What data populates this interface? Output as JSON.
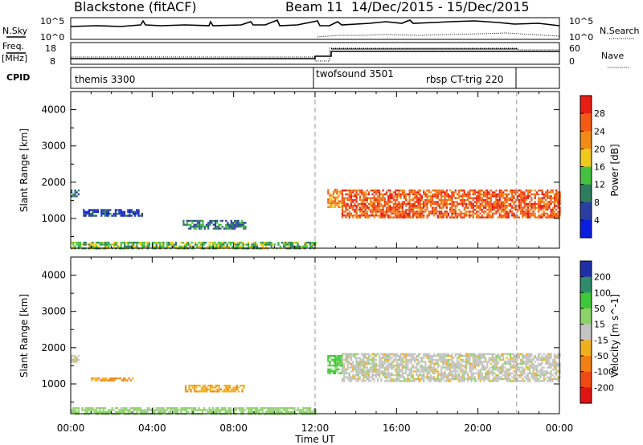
{
  "header": {
    "station": "Blackstone (fitACF)",
    "beam": "Beam 11",
    "dates": "14/Dec/2015 - 15/Dec/2015"
  },
  "aux_panels": {
    "nsky_label": "N.Sky",
    "nsky_ticks": [
      "10^5",
      "10^0"
    ],
    "nsearch_label": "N.Search",
    "nsearch_ticks": [
      "10^5",
      "10^0"
    ],
    "freq_label": "Freq.",
    "freq_unit": "[MHz]",
    "freq_ticks": [
      "18",
      "8"
    ],
    "nave_label": "Nave",
    "nave_ticks": [
      "60",
      "0"
    ],
    "cpid_label": "CPID",
    "cpid_entries": [
      "themis 3300",
      "twofsound 3501",
      "rbsp CT-trig 220"
    ]
  },
  "chart_data": [
    {
      "type": "heatmap",
      "panel": "power",
      "ylabel": "Slant Range [km]",
      "xlabel": "",
      "colorbar_label": "Power [dB]",
      "colorbar_ticks": [
        "4",
        "8",
        "12",
        "16",
        "20",
        "24",
        "28"
      ],
      "colorbar_colors": [
        "#0a1ee0",
        "#2a3ea0",
        "#2e7c5e",
        "#44c040",
        "#f0c81e",
        "#f08c14",
        "#f55a14",
        "#e81e14"
      ],
      "xlim": [
        0,
        24
      ],
      "ylim": [
        180,
        4500
      ],
      "yticks": [
        1000,
        2000,
        3000,
        4000
      ],
      "x_tick_labels": [
        "00:00",
        "04:00",
        "08:00",
        "12:00",
        "16:00",
        "20:00",
        "00:00"
      ],
      "dashed_markers_hours": [
        12.0,
        21.9
      ],
      "regions": [
        {
          "t": [
            0.0,
            0.35
          ],
          "range": [
            1620,
            1800
          ],
          "value_db": 7
        },
        {
          "t": [
            0.6,
            3.5
          ],
          "range": [
            1080,
            1260
          ],
          "value_db": 5
        },
        {
          "t": [
            5.5,
            8.6
          ],
          "range": [
            740,
            960
          ],
          "value_db": 9
        },
        {
          "t": [
            0.0,
            12.0
          ],
          "range": [
            180,
            360
          ],
          "value_db": 14
        },
        {
          "t": [
            12.6,
            13.3
          ],
          "range": [
            1300,
            1820
          ],
          "value_db": 22
        },
        {
          "t": [
            13.3,
            24.0
          ],
          "range": [
            1050,
            1800
          ],
          "value_db": 26
        }
      ]
    },
    {
      "type": "heatmap",
      "panel": "velocity",
      "ylabel": "Slant Range [km]",
      "xlabel": "Time UT",
      "colorbar_label": "Velocity [m s^-1]",
      "colorbar_ticks": [
        "200",
        "100",
        "50",
        "15",
        "-15",
        "-50",
        "-100",
        "-200"
      ],
      "colorbar_colors": [
        "#1f2fa8",
        "#2e8c6a",
        "#3fc83a",
        "#8ed26a",
        "#c4c4c4",
        "#f0b01e",
        "#f08014",
        "#f04a14",
        "#e01414"
      ],
      "xlim": [
        0,
        24
      ],
      "ylim": [
        180,
        4500
      ],
      "yticks": [
        1000,
        2000,
        3000,
        4000
      ],
      "x_tick_labels": [
        "00:00",
        "04:00",
        "08:00",
        "12:00",
        "16:00",
        "20:00",
        "00:00"
      ],
      "dashed_markers_hours": [
        12.0,
        21.9
      ],
      "regions": [
        {
          "t": [
            0.0,
            0.35
          ],
          "range": [
            1620,
            1800
          ],
          "value_ms": 0
        },
        {
          "t": [
            1.0,
            3.0
          ],
          "range": [
            1080,
            1180
          ],
          "value_ms": -50
        },
        {
          "t": [
            5.6,
            8.5
          ],
          "range": [
            780,
            980
          ],
          "value_ms": -40
        },
        {
          "t": [
            0.0,
            12.0
          ],
          "range": [
            180,
            360
          ],
          "value_ms": 30
        },
        {
          "t": [
            12.6,
            13.3
          ],
          "range": [
            1300,
            1800
          ],
          "value_ms": 60
        },
        {
          "t": [
            13.3,
            24.0
          ],
          "range": [
            1100,
            1850
          ],
          "value_ms": 0
        }
      ]
    }
  ]
}
